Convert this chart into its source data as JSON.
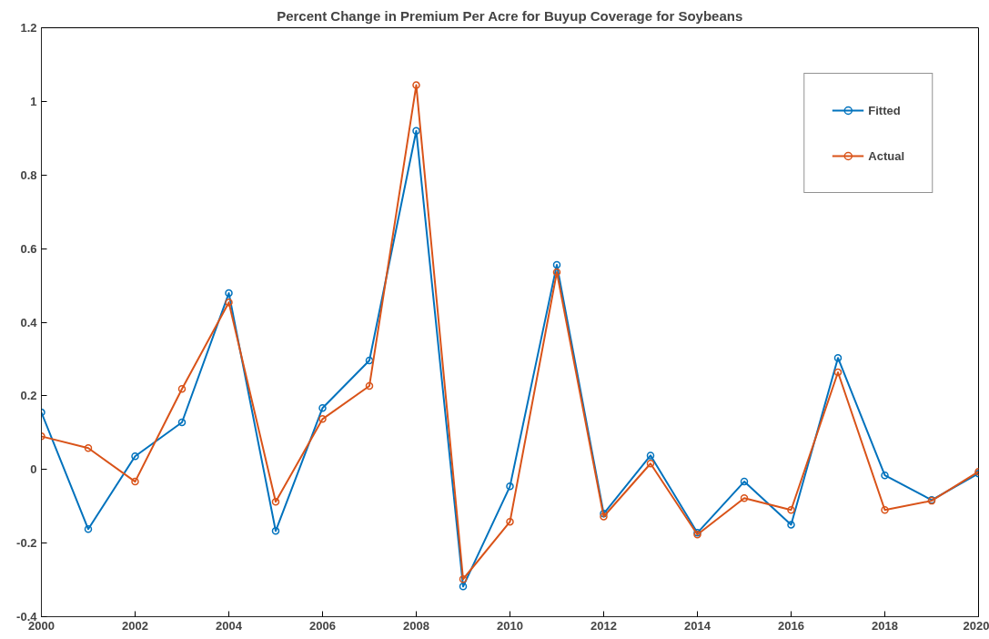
{
  "chart_data": {
    "type": "line",
    "title": "Percent Change in Premium Per Acre for Buyup Coverage for Soybeans",
    "x": [
      2000,
      2001,
      2002,
      2003,
      2004,
      2005,
      2006,
      2007,
      2008,
      2009,
      2010,
      2011,
      2012,
      2013,
      2014,
      2015,
      2016,
      2017,
      2018,
      2019,
      2020
    ],
    "series": [
      {
        "name": "Fitted",
        "color": "#0072bd",
        "values": [
          0.155,
          -0.162,
          0.036,
          0.128,
          0.479,
          -0.167,
          0.167,
          0.296,
          0.92,
          -0.318,
          -0.046,
          0.556,
          -0.12,
          0.038,
          -0.172,
          -0.033,
          -0.15,
          0.303,
          -0.016,
          -0.083,
          -0.011
        ]
      },
      {
        "name": "Actual",
        "color": "#d95319",
        "values": [
          0.09,
          0.058,
          -0.033,
          0.219,
          0.454,
          -0.088,
          0.137,
          0.227,
          1.044,
          -0.298,
          -0.142,
          0.536,
          -0.128,
          0.016,
          -0.177,
          -0.078,
          -0.11,
          0.264,
          -0.11,
          -0.085,
          -0.006
        ]
      }
    ],
    "xlim": [
      2000,
      2020
    ],
    "xticks": [
      2000,
      2002,
      2004,
      2006,
      2008,
      2010,
      2012,
      2014,
      2016,
      2018,
      2020
    ],
    "ylim": [
      -0.4,
      1.2
    ],
    "yticks": [
      -0.4,
      -0.2,
      0,
      0.2,
      0.4,
      0.6,
      0.8,
      1,
      1.2
    ],
    "grid": false,
    "legend": "top right",
    "marker": "circle",
    "line_style": "solid"
  }
}
